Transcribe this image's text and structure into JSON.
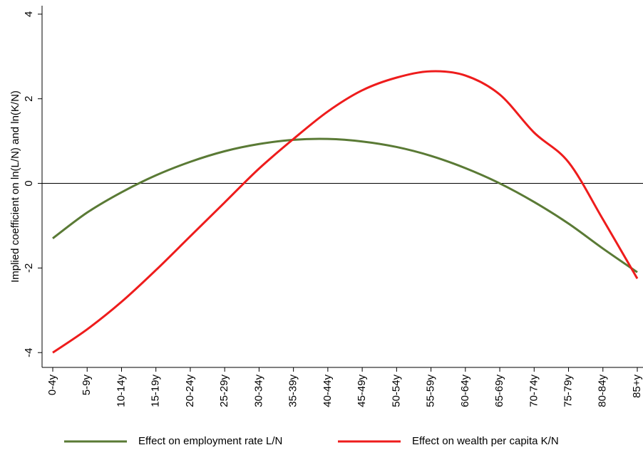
{
  "chart_data": {
    "type": "line",
    "y_label": "Implied coefficient on ln(L/N) and ln(K/N)",
    "categories": [
      "0-4y",
      "5-9y",
      "10-14y",
      "15-19y",
      "20-24y",
      "25-29y",
      "30-34y",
      "35-39y",
      "40-44y",
      "45-49y",
      "50-54y",
      "55-59y",
      "60-64y",
      "65-69y",
      "70-74y",
      "75-79y",
      "80-84y",
      "85+y"
    ],
    "series": [
      {
        "name": "Effect on employment rate L/N",
        "color": "#5a7a35",
        "values": [
          -1.3,
          -0.69,
          -0.21,
          0.19,
          0.51,
          0.76,
          0.93,
          1.03,
          1.05,
          0.99,
          0.86,
          0.65,
          0.36,
          0,
          -0.44,
          -0.95,
          -1.54,
          -2.1
        ]
      },
      {
        "name": "Effect on wealth per capita K/N",
        "color": "#ee1c1c",
        "values": [
          -4.0,
          -3.45,
          -2.8,
          -2.05,
          -1.25,
          -0.45,
          0.35,
          1.05,
          1.7,
          2.2,
          2.5,
          2.65,
          2.55,
          2.1,
          1.2,
          0.5,
          -0.85,
          -2.25
        ]
      }
    ],
    "ylim": [
      -4.35,
      4.2
    ],
    "yticks": [
      -4,
      -2,
      0,
      2,
      4
    ],
    "zero_line": true
  }
}
